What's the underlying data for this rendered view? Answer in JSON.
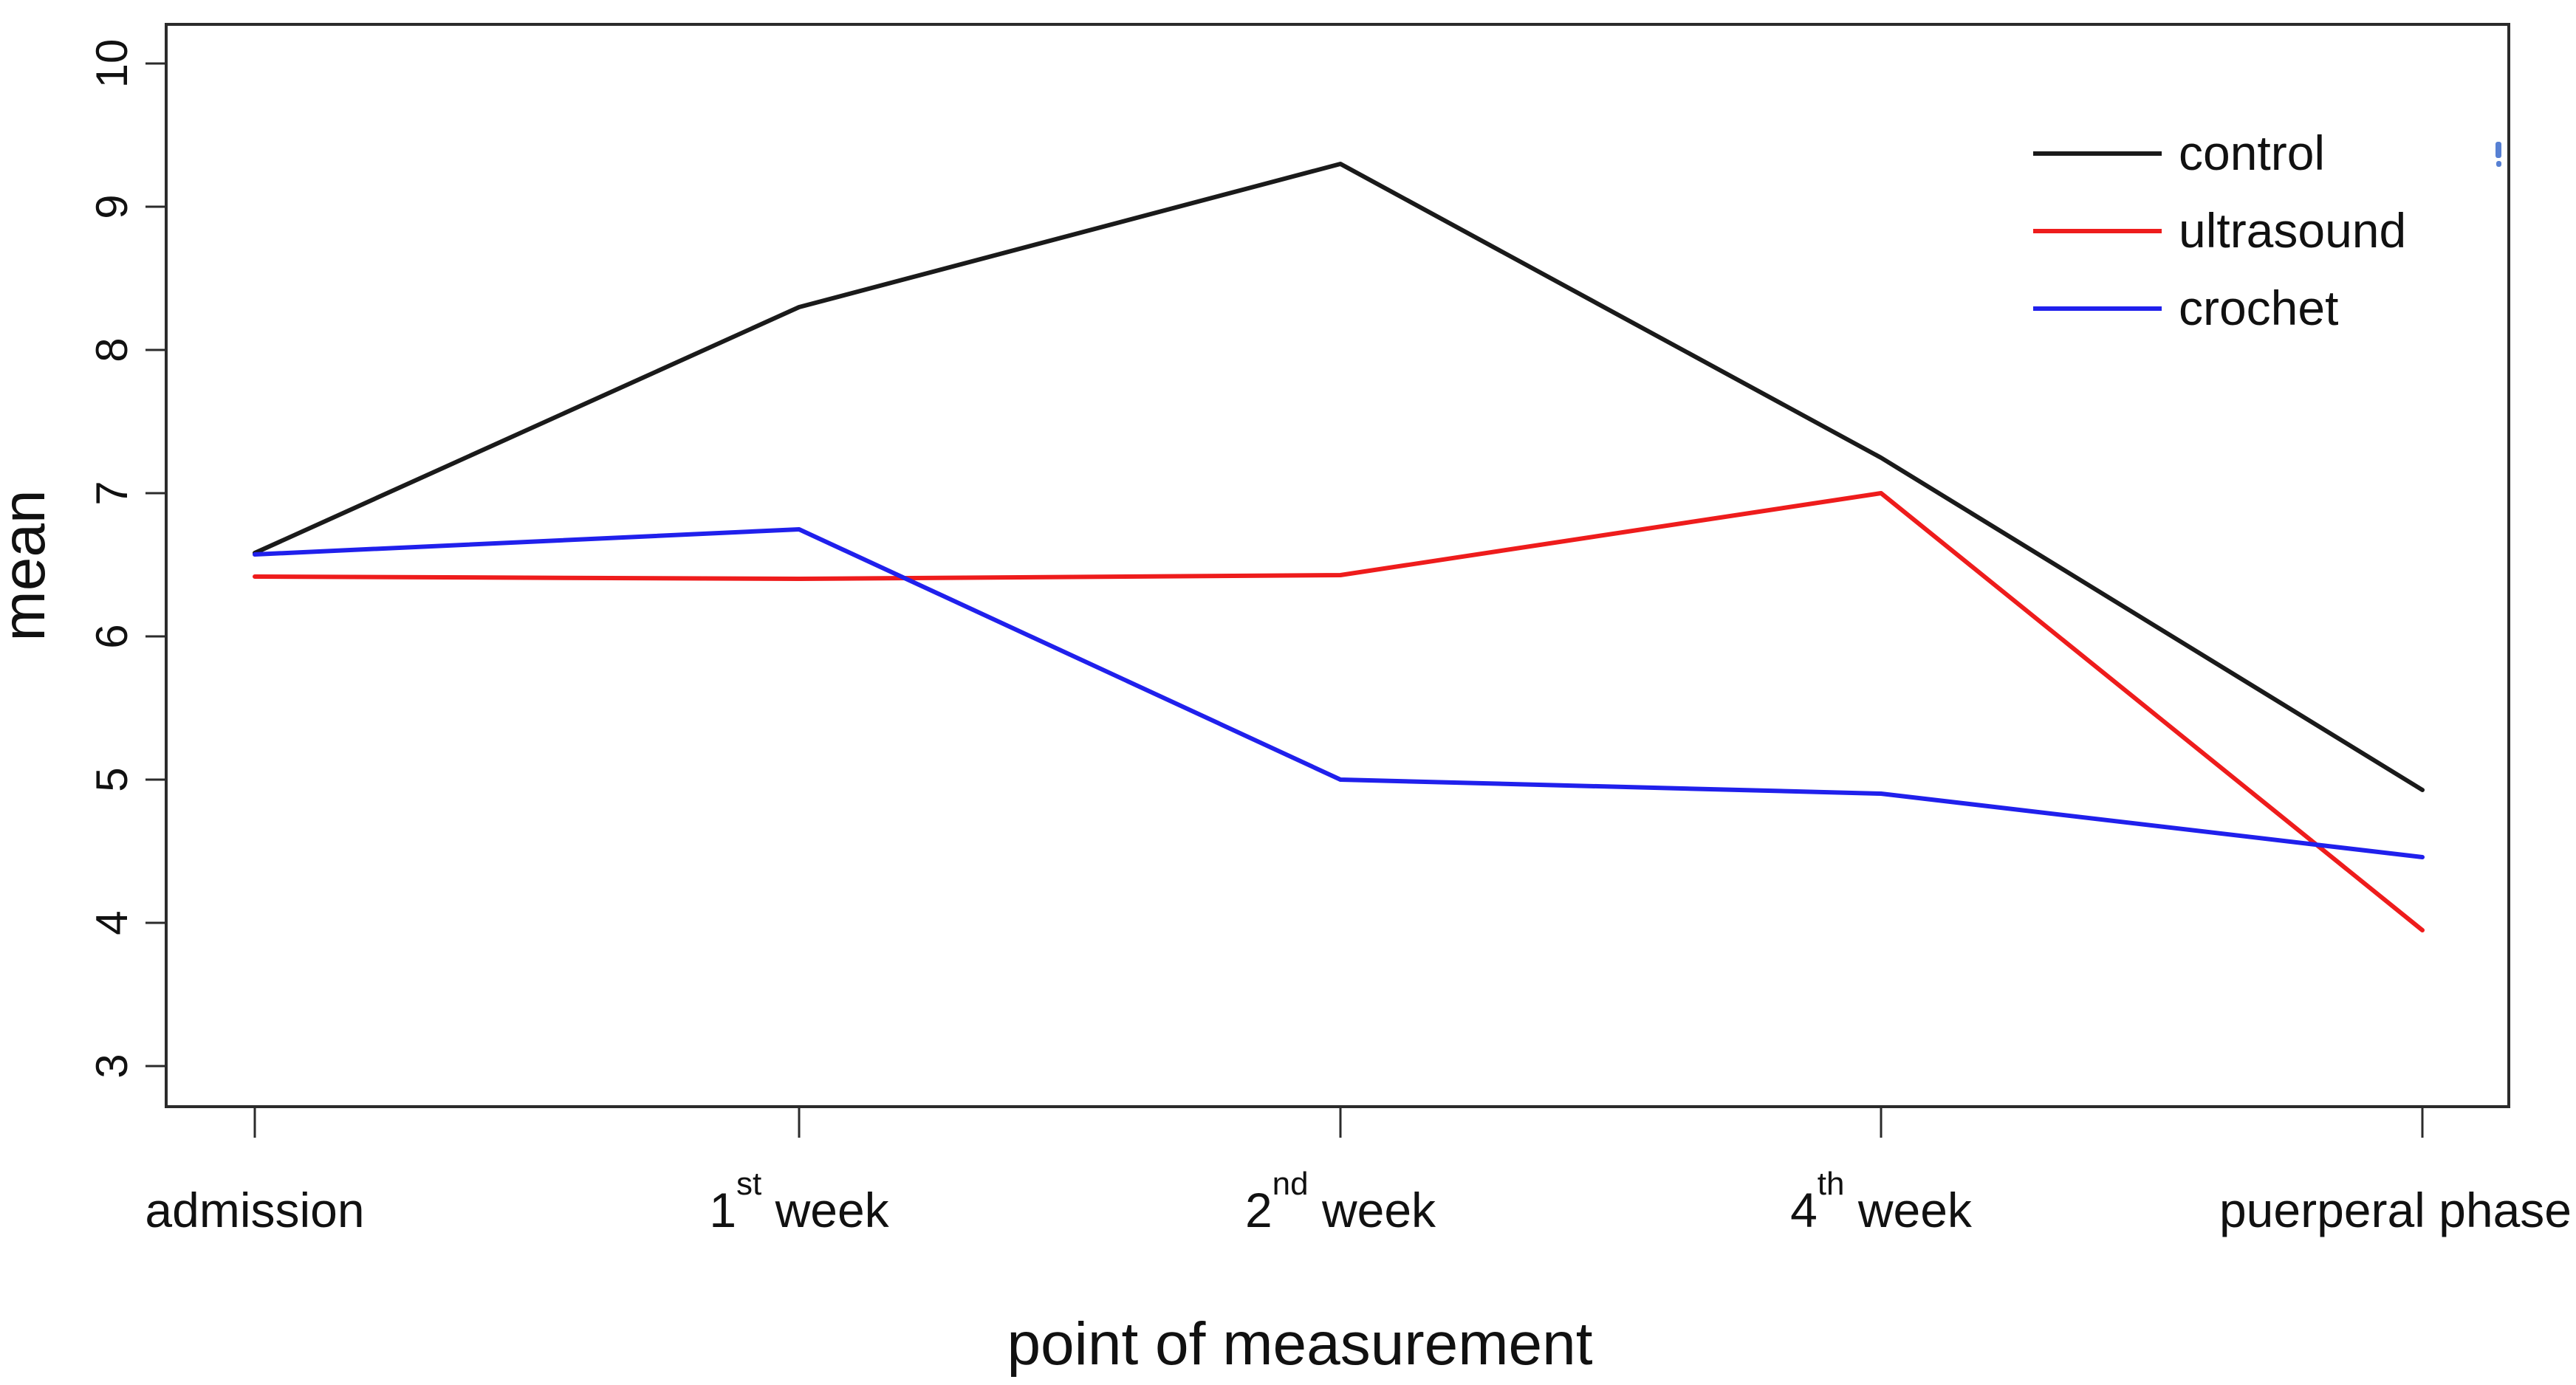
{
  "chart_data": {
    "type": "line",
    "title": "",
    "xlabel": "point of measurement",
    "ylabel": "mean",
    "categories": [
      "admission",
      "1st week",
      "2nd week",
      "4th week",
      "puerperal phase"
    ],
    "categories_rich": [
      {
        "main": "admission",
        "sup": "",
        "tail": ""
      },
      {
        "main": "1",
        "sup": "st",
        "tail": " week"
      },
      {
        "main": "2",
        "sup": "nd",
        "tail": " week"
      },
      {
        "main": "4",
        "sup": "th",
        "tail": " week"
      },
      {
        "main": "puerperal phase",
        "sup": "",
        "tail": ""
      }
    ],
    "y_ticks": [
      3,
      4,
      5,
      6,
      7,
      8,
      9,
      10
    ],
    "ylim": [
      2.7,
      10.3
    ],
    "grid": false,
    "legend_position": "top-right",
    "series": [
      {
        "name": "control",
        "color": "#1a1a1a",
        "values": [
          6.58,
          8.3,
          9.3,
          7.25,
          4.93
        ]
      },
      {
        "name": "ultrasound",
        "color": "#ee1c1c",
        "values": [
          6.42,
          6.4,
          6.43,
          7.0,
          3.95
        ]
      },
      {
        "name": "crochet",
        "color": "#2020ec",
        "values": [
          6.57,
          6.75,
          5.0,
          4.9,
          4.46
        ]
      }
    ],
    "axis_color": "#2b2b2b",
    "text_color": "#111111",
    "artifact_color": "#4573cf"
  }
}
